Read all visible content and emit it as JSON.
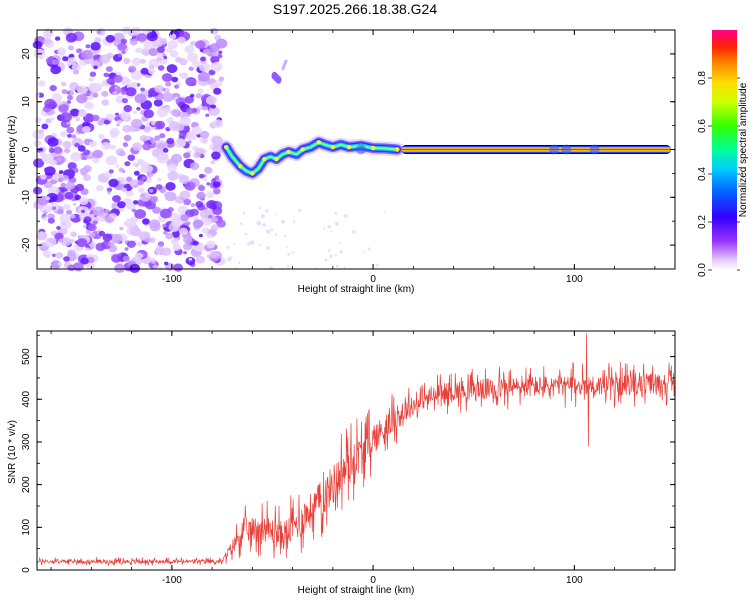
{
  "title": "S197.2025.266.18.38.G24",
  "chart_data": [
    {
      "type": "heatmap",
      "name": "spectrogram",
      "xlabel": "Height of straight line (km)",
      "ylabel": "Frequency (Hz)",
      "xlim": [
        -167,
        150
      ],
      "ylim": [
        -25,
        25
      ],
      "xticks": [
        -100,
        0,
        100
      ],
      "yticks": [
        -20,
        -10,
        0,
        10,
        20
      ],
      "noise_region_x": [
        -167,
        -75
      ],
      "signal_ridge": [
        {
          "x": -73,
          "f": 0.5
        },
        {
          "x": -70,
          "f": -1.5
        },
        {
          "x": -66,
          "f": -3.5
        },
        {
          "x": -63,
          "f": -4.5
        },
        {
          "x": -60,
          "f": -5.0
        },
        {
          "x": -57,
          "f": -4.0
        },
        {
          "x": -54,
          "f": -2.0
        },
        {
          "x": -51,
          "f": -1.5
        },
        {
          "x": -48,
          "f": -2.0
        },
        {
          "x": -45,
          "f": -1.0
        },
        {
          "x": -42,
          "f": -0.5
        },
        {
          "x": -38,
          "f": -1.0
        },
        {
          "x": -35,
          "f": 0.0
        },
        {
          "x": -31,
          "f": 0.5
        },
        {
          "x": -27,
          "f": 1.5
        },
        {
          "x": -24,
          "f": 1.0
        },
        {
          "x": -20,
          "f": 0.5
        },
        {
          "x": -16,
          "f": 1.0
        },
        {
          "x": -12,
          "f": 0.5
        },
        {
          "x": -6,
          "f": 0.8
        },
        {
          "x": 0,
          "f": 0.3
        },
        {
          "x": 6,
          "f": 0.2
        },
        {
          "x": 12,
          "f": 0.0
        }
      ],
      "carrier_line": {
        "x_start": 14,
        "x_end": 148,
        "f": 0.0
      },
      "isolated_blob": {
        "x": -49,
        "f": 15
      }
    },
    {
      "type": "colorbar",
      "label": "Normalized spectral amplitude",
      "ticks": [
        0.0,
        0.2,
        0.4,
        0.6,
        0.8
      ],
      "tick_labels": [
        "0.0",
        "0.2",
        "0.4",
        "0.6",
        "0.8"
      ],
      "range": [
        0,
        1
      ]
    },
    {
      "type": "line",
      "name": "snr",
      "xlabel": "Height of straight line (km)",
      "ylabel": "SNR (10 * v/v)",
      "xlim": [
        -167,
        150
      ],
      "ylim": [
        0,
        560
      ],
      "xticks": [
        -100,
        0,
        100
      ],
      "yticks": [
        0,
        100,
        200,
        300,
        400,
        500
      ],
      "color": "#e8403a",
      "envelope": [
        {
          "x": -167,
          "y": 20
        },
        {
          "x": -75,
          "y": 20
        },
        {
          "x": -65,
          "y": 90
        },
        {
          "x": -55,
          "y": 100
        },
        {
          "x": -45,
          "y": 80
        },
        {
          "x": -35,
          "y": 120
        },
        {
          "x": -25,
          "y": 170
        },
        {
          "x": -15,
          "y": 230
        },
        {
          "x": -5,
          "y": 280
        },
        {
          "x": 5,
          "y": 330
        },
        {
          "x": 15,
          "y": 370
        },
        {
          "x": 25,
          "y": 400
        },
        {
          "x": 40,
          "y": 420
        },
        {
          "x": 60,
          "y": 425
        },
        {
          "x": 80,
          "y": 430
        },
        {
          "x": 100,
          "y": 432
        },
        {
          "x": 120,
          "y": 432
        },
        {
          "x": 150,
          "y": 440
        }
      ],
      "noise_amplitude": [
        {
          "x": -167,
          "a": 10
        },
        {
          "x": -75,
          "a": 10
        },
        {
          "x": -65,
          "a": 60
        },
        {
          "x": -40,
          "a": 80
        },
        {
          "x": -15,
          "a": 110
        },
        {
          "x": 0,
          "a": 80
        },
        {
          "x": 20,
          "a": 50
        },
        {
          "x": 60,
          "a": 55
        },
        {
          "x": 150,
          "a": 55
        }
      ],
      "spikes": [
        {
          "x": -8,
          "y": 355
        },
        {
          "x": 106,
          "y": 555
        },
        {
          "x": 107,
          "y": 290
        }
      ]
    }
  ]
}
